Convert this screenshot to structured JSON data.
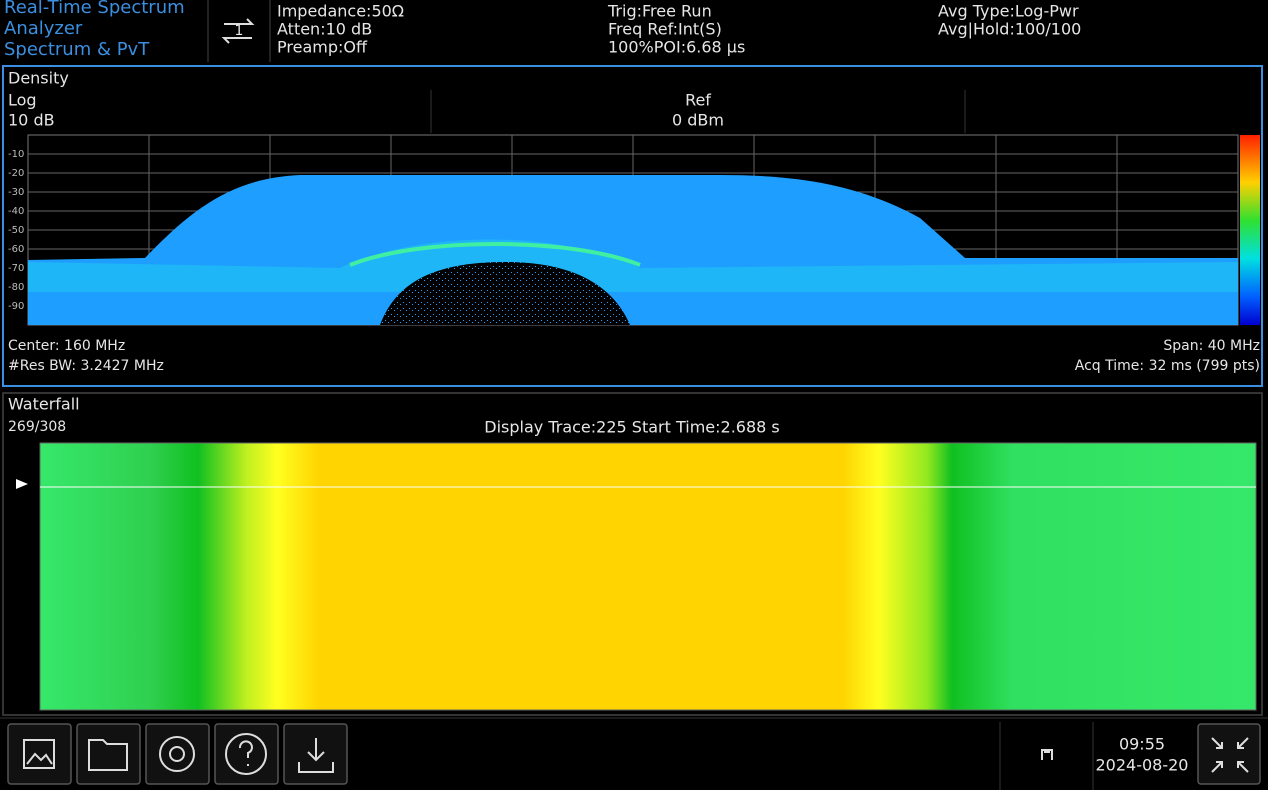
{
  "header": {
    "mode": [
      "Real-Time Spectrum",
      "Analyzer",
      "Spectrum & PvT"
    ],
    "trace_icon": "1",
    "settings_1": [
      "Impedance:50Ω",
      "Atten:10 dB",
      "Preamp:Off"
    ],
    "settings_2": [
      "Trig:Free Run",
      "Freq Ref:Int(S)",
      "100%POI:6.68 µs"
    ],
    "settings_3": [
      "Avg Type:Log-Pwr",
      "Avg|Hold:100/100"
    ]
  },
  "density": {
    "title": "Density",
    "scale": "Log",
    "scale_div": "10 dB",
    "ref_label": "Ref",
    "ref_value": "0 dBm",
    "yticks": [
      "-10",
      "-20",
      "-30",
      "-40",
      "-50",
      "-60",
      "-70",
      "-80",
      "-90"
    ],
    "center": "Center: 160 MHz",
    "res_bw": "#Res BW: 3.2427 MHz",
    "span": "Span: 40 MHz",
    "acq_time": "Acq Time: 32 ms (799 pts)"
  },
  "waterfall": {
    "title": "Waterfall",
    "count": "269/308",
    "display": "Display Trace:225  Start Time:2.688 s"
  },
  "footer": {
    "time": "09:55",
    "date": "2024-08-20"
  }
}
